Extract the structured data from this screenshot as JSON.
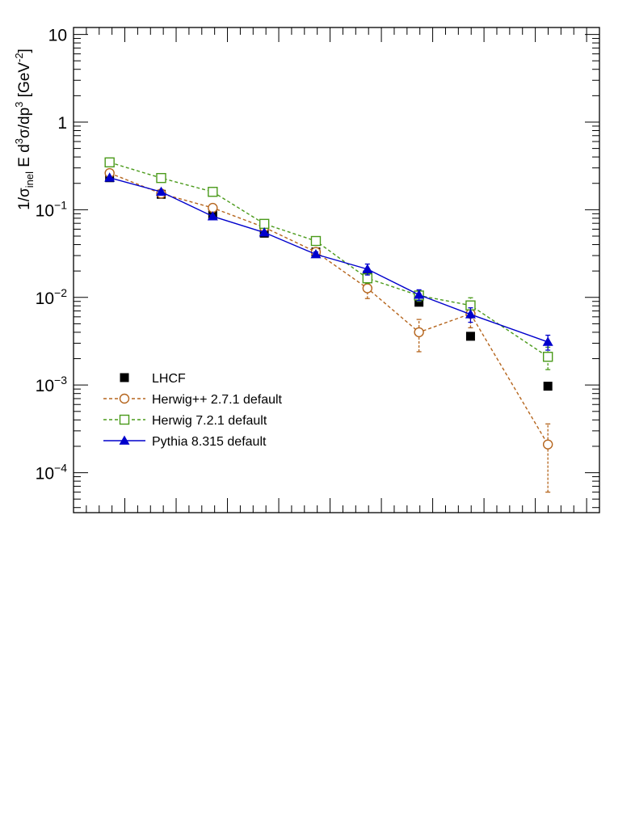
{
  "chart_data": {
    "type": "scatter",
    "title": "",
    "xlabel": "",
    "ylabel": "1/σinel E d3σ/dp3 [GeV-2]",
    "ylabel_parts": {
      "lead": "1/σ",
      "sub": "inel",
      "mid": " E d",
      "sup1": "3",
      "mid2": "σ/dp",
      "sup2": "3",
      "unit": " [GeV",
      "sup3": "-2",
      "close": "]"
    },
    "yscale": "log",
    "ylim": [
      3.5e-05,
      12
    ],
    "xlim": [
      0,
      10.2
    ],
    "x_tick_labels": "none",
    "y_tick_labels": [
      {
        "value": 10,
        "base": "10",
        "exp": ""
      },
      {
        "value": 1,
        "base": "1",
        "exp": ""
      },
      {
        "value": 0.1,
        "base": "10",
        "exp": "−1"
      },
      {
        "value": 0.01,
        "base": "10",
        "exp": "−2"
      },
      {
        "value": 0.001,
        "base": "10",
        "exp": "−3"
      },
      {
        "value": 0.0001,
        "base": "10",
        "exp": "−4"
      }
    ],
    "legend_position": "bottom-left",
    "x": [
      0.7,
      1.7,
      2.7,
      3.7,
      4.7,
      5.7,
      6.7,
      7.7,
      9.2
    ],
    "series": [
      {
        "name": "LHCF",
        "color": "#000000",
        "marker": "square-filled",
        "line": "none",
        "x": [
          0.7,
          1.7,
          2.7,
          3.7,
          4.7,
          5.7,
          6.7,
          7.7,
          9.2
        ],
        "values": [
          0.232,
          0.15,
          0.087,
          0.054,
          0.033,
          0.018,
          0.0088,
          0.0036,
          0.00097
        ],
        "err_low": [
          0,
          0,
          0,
          0,
          0,
          0,
          0,
          0,
          0
        ],
        "err_high": [
          0,
          0,
          0,
          0,
          0,
          0,
          0,
          0,
          0
        ]
      },
      {
        "name": "Herwig++ 2.7.1 default",
        "color": "#b5651d",
        "marker": "circle-open",
        "line": "dashed",
        "x": [
          0.7,
          1.7,
          2.7,
          3.7,
          4.7,
          5.7,
          6.7,
          7.7,
          9.2
        ],
        "values": [
          0.262,
          0.153,
          0.105,
          0.063,
          0.033,
          0.0127,
          0.004,
          0.0065,
          0.00021
        ],
        "err_low": [
          0.01,
          0.006,
          0.005,
          0.003,
          0.002,
          0.003,
          0.0016,
          0.002,
          0.00015
        ],
        "err_high": [
          0.01,
          0.006,
          0.005,
          0.003,
          0.002,
          0.003,
          0.0016,
          0.002,
          0.00015
        ]
      },
      {
        "name": "Herwig 7.2.1 default",
        "color": "#4a9a1a",
        "marker": "square-open",
        "line": "dashed",
        "x": [
          0.7,
          1.7,
          2.7,
          3.7,
          4.7,
          5.7,
          6.7,
          7.7,
          9.2
        ],
        "values": [
          0.347,
          0.23,
          0.16,
          0.069,
          0.044,
          0.0165,
          0.0105,
          0.0081,
          0.0021
        ],
        "err_low": [
          0.01,
          0.008,
          0.006,
          0.003,
          0.002,
          0.002,
          0.0015,
          0.0018,
          0.0006
        ],
        "err_high": [
          0.01,
          0.008,
          0.006,
          0.003,
          0.002,
          0.002,
          0.0015,
          0.0018,
          0.0006
        ]
      },
      {
        "name": "Pythia 8.315 default",
        "color": "#0000cc",
        "marker": "triangle-filled",
        "line": "solid",
        "x": [
          0.7,
          1.7,
          2.7,
          3.7,
          4.7,
          5.7,
          6.7,
          7.7,
          9.2
        ],
        "values": [
          0.232,
          0.16,
          0.084,
          0.055,
          0.031,
          0.021,
          0.0107,
          0.0064,
          0.0031
        ],
        "err_low": [
          0.006,
          0.005,
          0.003,
          0.002,
          0.002,
          0.003,
          0.0015,
          0.0012,
          0.0006
        ],
        "err_high": [
          0.006,
          0.005,
          0.003,
          0.002,
          0.002,
          0.003,
          0.0015,
          0.0012,
          0.0006
        ]
      }
    ]
  }
}
